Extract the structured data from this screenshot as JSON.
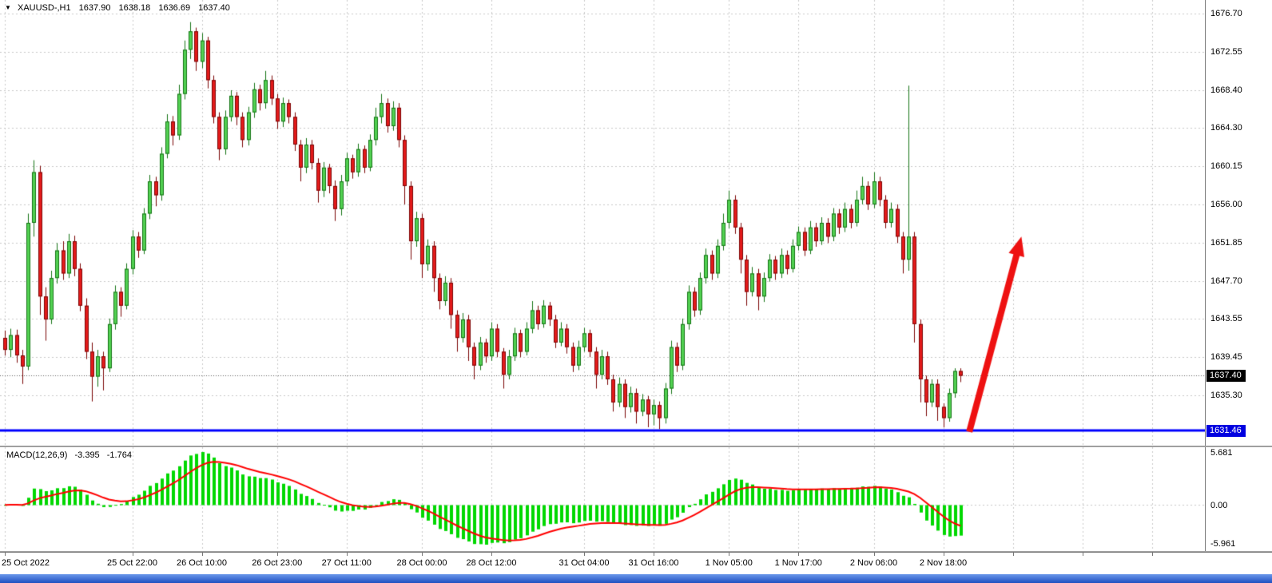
{
  "header": {
    "dropdown_icon": "▼",
    "symbol_timeframe": "XAUUSD-,H1",
    "open": "1637.90",
    "high": "1638.18",
    "low": "1636.69",
    "close": "1637.40"
  },
  "indicator": {
    "label": "MACD(12,26,9)",
    "value_main": "-3.395",
    "value_signal": "-1.764"
  },
  "chart_data": {
    "type": "candlestick_with_macd",
    "symbol": "XAUUSD-",
    "timeframe": "H1",
    "price_axis": {
      "ticks": [
        "1676.70",
        "1672.55",
        "1668.40",
        "1664.30",
        "1660.15",
        "1656.00",
        "1651.85",
        "1647.70",
        "1643.55",
        "1639.45",
        "1635.30"
      ],
      "ylim": [
        1629.8,
        1678.2
      ],
      "current_price": 1637.4,
      "current_price_label": "1637.40"
    },
    "time_axis": {
      "labels": [
        {
          "text": "25 Oct 2022",
          "bar": 0
        },
        {
          "text": "25 Oct 22:00",
          "bar": 22
        },
        {
          "text": "26 Oct 10:00",
          "bar": 34
        },
        {
          "text": "26 Oct 23:00",
          "bar": 47
        },
        {
          "text": "27 Oct 11:00",
          "bar": 59
        },
        {
          "text": "28 Oct 00:00",
          "bar": 72
        },
        {
          "text": "28 Oct 12:00",
          "bar": 84
        },
        {
          "text": "31 Oct 04:00",
          "bar": 100
        },
        {
          "text": "31 Oct 16:00",
          "bar": 112
        },
        {
          "text": "1 Nov 05:00",
          "bar": 125
        },
        {
          "text": "1 Nov 17:00",
          "bar": 137
        },
        {
          "text": "2 Nov 06:00",
          "bar": 150
        },
        {
          "text": "2 Nov 18:00",
          "bar": 162
        }
      ],
      "future_gridline_bars": [
        174,
        186,
        198
      ]
    },
    "candles": [
      [
        1641.5,
        1642.3,
        1639.6,
        1640.2
      ],
      [
        1640.2,
        1642.5,
        1639.4,
        1641.8
      ],
      [
        1641.8,
        1642.4,
        1638.8,
        1639.6
      ],
      [
        1639.6,
        1640.2,
        1636.5,
        1638.4
      ],
      [
        1638.4,
        1655.0,
        1638.0,
        1654.0
      ],
      [
        1654.0,
        1660.8,
        1652.5,
        1659.5
      ],
      [
        1659.5,
        1660.2,
        1644.0,
        1646.0
      ],
      [
        1646.0,
        1647.0,
        1641.2,
        1643.5
      ],
      [
        1643.5,
        1648.8,
        1643.0,
        1648.0
      ],
      [
        1648.0,
        1651.8,
        1647.4,
        1651.0
      ],
      [
        1651.0,
        1652.0,
        1647.8,
        1648.5
      ],
      [
        1648.5,
        1652.8,
        1648.0,
        1652.0
      ],
      [
        1652.0,
        1652.6,
        1648.2,
        1649.0
      ],
      [
        1649.0,
        1649.6,
        1644.4,
        1645.0
      ],
      [
        1645.0,
        1645.8,
        1639.2,
        1640.0
      ],
      [
        1640.0,
        1641.0,
        1634.6,
        1637.3
      ],
      [
        1637.3,
        1640.2,
        1636.2,
        1639.5
      ],
      [
        1639.5,
        1640.0,
        1635.8,
        1638.2
      ],
      [
        1638.2,
        1643.6,
        1637.8,
        1643.0
      ],
      [
        1643.0,
        1647.2,
        1642.4,
        1646.5
      ],
      [
        1646.5,
        1647.0,
        1643.8,
        1645.0
      ],
      [
        1645.0,
        1649.6,
        1644.6,
        1649.0
      ],
      [
        1649.0,
        1653.2,
        1648.4,
        1652.5
      ],
      [
        1652.5,
        1653.0,
        1650.2,
        1651.0
      ],
      [
        1651.0,
        1655.6,
        1650.6,
        1655.0
      ],
      [
        1655.0,
        1659.2,
        1654.4,
        1658.5
      ],
      [
        1658.5,
        1659.0,
        1655.8,
        1657.0
      ],
      [
        1657.0,
        1662.2,
        1656.4,
        1661.5
      ],
      [
        1661.5,
        1665.8,
        1661.0,
        1665.0
      ],
      [
        1665.0,
        1665.6,
        1662.4,
        1663.5
      ],
      [
        1663.5,
        1669.0,
        1663.0,
        1668.0
      ],
      [
        1668.0,
        1673.8,
        1667.4,
        1672.8
      ],
      [
        1672.8,
        1675.8,
        1671.8,
        1674.8
      ],
      [
        1674.8,
        1675.2,
        1670.5,
        1671.5
      ],
      [
        1671.5,
        1674.6,
        1670.8,
        1673.8
      ],
      [
        1673.8,
        1674.2,
        1668.6,
        1669.5
      ],
      [
        1669.5,
        1670.0,
        1664.8,
        1665.5
      ],
      [
        1665.5,
        1666.0,
        1660.8,
        1662.0
      ],
      [
        1662.0,
        1666.2,
        1661.4,
        1665.5
      ],
      [
        1665.5,
        1668.4,
        1665.0,
        1667.8
      ],
      [
        1667.8,
        1668.2,
        1664.6,
        1665.5
      ],
      [
        1665.5,
        1666.0,
        1662.2,
        1663.0
      ],
      [
        1663.0,
        1666.6,
        1662.4,
        1666.0
      ],
      [
        1666.0,
        1669.2,
        1665.4,
        1668.5
      ],
      [
        1668.5,
        1669.0,
        1666.2,
        1667.0
      ],
      [
        1667.0,
        1670.5,
        1666.4,
        1669.5
      ],
      [
        1669.5,
        1670.0,
        1666.8,
        1667.5
      ],
      [
        1667.5,
        1668.0,
        1664.2,
        1665.0
      ],
      [
        1665.0,
        1667.6,
        1664.4,
        1667.0
      ],
      [
        1667.0,
        1667.4,
        1664.8,
        1665.5
      ],
      [
        1665.5,
        1666.0,
        1661.8,
        1662.5
      ],
      [
        1662.5,
        1663.0,
        1658.5,
        1660.0
      ],
      [
        1660.0,
        1663.2,
        1659.4,
        1662.5
      ],
      [
        1662.5,
        1663.0,
        1659.8,
        1660.5
      ],
      [
        1660.5,
        1661.0,
        1656.2,
        1657.5
      ],
      [
        1657.5,
        1660.6,
        1656.8,
        1660.0
      ],
      [
        1660.0,
        1660.4,
        1657.2,
        1658.0
      ],
      [
        1658.0,
        1658.6,
        1654.2,
        1655.5
      ],
      [
        1655.5,
        1659.2,
        1654.8,
        1658.5
      ],
      [
        1658.5,
        1661.6,
        1658.0,
        1661.0
      ],
      [
        1661.0,
        1661.4,
        1658.8,
        1659.5
      ],
      [
        1659.5,
        1662.6,
        1659.0,
        1662.0
      ],
      [
        1662.0,
        1662.4,
        1659.4,
        1660.0
      ],
      [
        1660.0,
        1663.6,
        1659.6,
        1663.0
      ],
      [
        1663.0,
        1666.5,
        1662.4,
        1665.5
      ],
      [
        1665.5,
        1668.0,
        1664.8,
        1667.0
      ],
      [
        1667.0,
        1667.5,
        1663.8,
        1664.5
      ],
      [
        1664.5,
        1667.2,
        1664.0,
        1666.5
      ],
      [
        1666.5,
        1667.0,
        1662.2,
        1663.0
      ],
      [
        1663.0,
        1663.5,
        1656.0,
        1658.0
      ],
      [
        1658.0,
        1658.5,
        1650.0,
        1652.0
      ],
      [
        1652.0,
        1655.2,
        1651.4,
        1654.5
      ],
      [
        1654.5,
        1655.0,
        1648.0,
        1649.5
      ],
      [
        1649.5,
        1652.2,
        1648.8,
        1651.5
      ],
      [
        1651.5,
        1652.0,
        1646.5,
        1648.0
      ],
      [
        1648.0,
        1648.5,
        1644.6,
        1645.5
      ],
      [
        1645.5,
        1648.2,
        1645.0,
        1647.5
      ],
      [
        1647.5,
        1648.0,
        1642.5,
        1644.0
      ],
      [
        1644.0,
        1644.5,
        1640.0,
        1641.5
      ],
      [
        1641.5,
        1644.2,
        1641.0,
        1643.5
      ],
      [
        1643.5,
        1644.0,
        1639.0,
        1640.5
      ],
      [
        1640.5,
        1641.0,
        1637.0,
        1638.5
      ],
      [
        1638.5,
        1641.6,
        1638.0,
        1641.0
      ],
      [
        1641.0,
        1641.4,
        1638.8,
        1639.5
      ],
      [
        1639.5,
        1643.2,
        1639.0,
        1642.5
      ],
      [
        1642.5,
        1643.0,
        1639.4,
        1640.0
      ],
      [
        1640.0,
        1640.4,
        1636.0,
        1637.5
      ],
      [
        1637.5,
        1640.2,
        1637.0,
        1639.5
      ],
      [
        1639.5,
        1642.6,
        1639.0,
        1642.0
      ],
      [
        1642.0,
        1642.4,
        1639.4,
        1640.0
      ],
      [
        1640.0,
        1643.2,
        1639.6,
        1642.5
      ],
      [
        1642.5,
        1645.5,
        1642.0,
        1644.5
      ],
      [
        1644.5,
        1645.0,
        1642.4,
        1643.0
      ],
      [
        1643.0,
        1645.6,
        1642.6,
        1645.0
      ],
      [
        1645.0,
        1645.4,
        1642.8,
        1643.5
      ],
      [
        1643.5,
        1644.0,
        1640.4,
        1641.0
      ],
      [
        1641.0,
        1643.2,
        1640.6,
        1642.5
      ],
      [
        1642.5,
        1643.0,
        1639.8,
        1640.5
      ],
      [
        1640.5,
        1641.0,
        1637.8,
        1638.5
      ],
      [
        1638.5,
        1641.2,
        1638.0,
        1640.5
      ],
      [
        1640.5,
        1642.6,
        1640.0,
        1642.0
      ],
      [
        1642.0,
        1642.4,
        1639.4,
        1640.0
      ],
      [
        1640.0,
        1640.5,
        1636.0,
        1637.5
      ],
      [
        1637.5,
        1640.2,
        1637.0,
        1639.5
      ],
      [
        1639.5,
        1640.0,
        1636.4,
        1637.0
      ],
      [
        1637.0,
        1637.5,
        1633.5,
        1634.5
      ],
      [
        1634.5,
        1637.2,
        1634.0,
        1636.5
      ],
      [
        1636.5,
        1637.0,
        1632.8,
        1634.0
      ],
      [
        1634.0,
        1636.2,
        1633.4,
        1635.5
      ],
      [
        1635.5,
        1636.0,
        1632.2,
        1633.5
      ],
      [
        1633.5,
        1635.4,
        1633.0,
        1634.8
      ],
      [
        1634.8,
        1635.2,
        1631.8,
        1633.2
      ],
      [
        1633.2,
        1634.8,
        1632.0,
        1634.2
      ],
      [
        1634.2,
        1634.6,
        1631.6,
        1632.8
      ],
      [
        1632.8,
        1636.6,
        1632.2,
        1636.0
      ],
      [
        1636.0,
        1641.2,
        1635.4,
        1640.5
      ],
      [
        1640.5,
        1641.0,
        1637.8,
        1638.5
      ],
      [
        1638.5,
        1643.6,
        1638.0,
        1643.0
      ],
      [
        1643.0,
        1647.2,
        1642.4,
        1646.5
      ],
      [
        1646.5,
        1647.0,
        1643.8,
        1644.5
      ],
      [
        1644.5,
        1648.6,
        1644.0,
        1648.0
      ],
      [
        1648.0,
        1651.2,
        1647.4,
        1650.5
      ],
      [
        1650.5,
        1651.0,
        1647.8,
        1648.5
      ],
      [
        1648.5,
        1652.2,
        1648.0,
        1651.5
      ],
      [
        1651.5,
        1655.0,
        1651.0,
        1654.0
      ],
      [
        1654.0,
        1657.5,
        1653.4,
        1656.5
      ],
      [
        1656.5,
        1657.0,
        1652.8,
        1653.5
      ],
      [
        1653.5,
        1654.0,
        1648.5,
        1650.0
      ],
      [
        1650.0,
        1650.5,
        1645.0,
        1646.5
      ],
      [
        1646.5,
        1649.2,
        1646.0,
        1648.5
      ],
      [
        1648.5,
        1649.0,
        1644.5,
        1646.0
      ],
      [
        1646.0,
        1648.6,
        1645.4,
        1648.0
      ],
      [
        1648.0,
        1650.6,
        1647.6,
        1650.0
      ],
      [
        1650.0,
        1650.4,
        1647.8,
        1648.5
      ],
      [
        1648.5,
        1651.2,
        1648.0,
        1650.5
      ],
      [
        1650.5,
        1651.0,
        1648.4,
        1649.0
      ],
      [
        1649.0,
        1652.2,
        1648.6,
        1651.5
      ],
      [
        1651.5,
        1653.6,
        1651.0,
        1653.0
      ],
      [
        1653.0,
        1653.5,
        1650.4,
        1651.0
      ],
      [
        1651.0,
        1654.2,
        1650.6,
        1653.5
      ],
      [
        1653.5,
        1654.0,
        1651.4,
        1652.0
      ],
      [
        1652.0,
        1654.6,
        1651.6,
        1654.0
      ],
      [
        1654.0,
        1654.5,
        1651.8,
        1652.5
      ],
      [
        1652.5,
        1655.6,
        1652.0,
        1655.0
      ],
      [
        1655.0,
        1655.5,
        1652.8,
        1653.5
      ],
      [
        1653.5,
        1656.2,
        1653.0,
        1655.5
      ],
      [
        1655.5,
        1656.0,
        1653.4,
        1654.0
      ],
      [
        1654.0,
        1657.5,
        1653.6,
        1656.5
      ],
      [
        1656.5,
        1659.0,
        1656.0,
        1658.0
      ],
      [
        1658.0,
        1658.5,
        1655.4,
        1656.0
      ],
      [
        1656.0,
        1659.5,
        1655.6,
        1658.5
      ],
      [
        1658.5,
        1659.0,
        1655.8,
        1656.5
      ],
      [
        1656.5,
        1657.0,
        1653.4,
        1654.0
      ],
      [
        1654.0,
        1656.2,
        1653.5,
        1655.5
      ],
      [
        1655.5,
        1656.0,
        1651.8,
        1652.5
      ],
      [
        1652.5,
        1653.0,
        1648.5,
        1650.0
      ],
      [
        1650.0,
        1668.9,
        1648.8,
        1652.5
      ],
      [
        1652.5,
        1653.0,
        1641.0,
        1643.0
      ],
      [
        1643.0,
        1643.5,
        1634.5,
        1637.0
      ],
      [
        1637.0,
        1637.4,
        1633.0,
        1634.5
      ],
      [
        1634.5,
        1637.0,
        1634.0,
        1636.5
      ],
      [
        1636.5,
        1637.0,
        1632.5,
        1634.0
      ],
      [
        1634.0,
        1634.4,
        1631.8,
        1632.8
      ],
      [
        1632.8,
        1636.0,
        1632.4,
        1635.5
      ],
      [
        1635.5,
        1638.2,
        1635.0,
        1637.9
      ],
      [
        1637.9,
        1638.2,
        1636.7,
        1637.4
      ]
    ],
    "macd": {
      "fast": 12,
      "slow": 26,
      "signal": 9,
      "axis_ticks": {
        "top": "5.681",
        "zero": "0.00",
        "bottom": "-5.961"
      }
    },
    "support_line": {
      "price": 1631.46,
      "label": "1631.46"
    },
    "arrow": {
      "from_bar": 166.5,
      "from_price": 1631.3,
      "to_bar": 175.5,
      "to_price": 1652.5
    }
  },
  "colors": {
    "background": "#ffffff",
    "grid": "#c9c9c9",
    "bull_fill": "#52d152",
    "bull_border": "#157315",
    "bear_fill": "#e41b1b",
    "bear_border": "#7c0606",
    "current_price_line": "#666666",
    "macd_bar": "#00d800",
    "macd_signal": "#ff0000",
    "support": "#0000ff",
    "arrow": "#ee1111",
    "current_price_badge_bg": "#000000",
    "support_badge_bg": "#0000e0",
    "axis_text": "#000000"
  }
}
